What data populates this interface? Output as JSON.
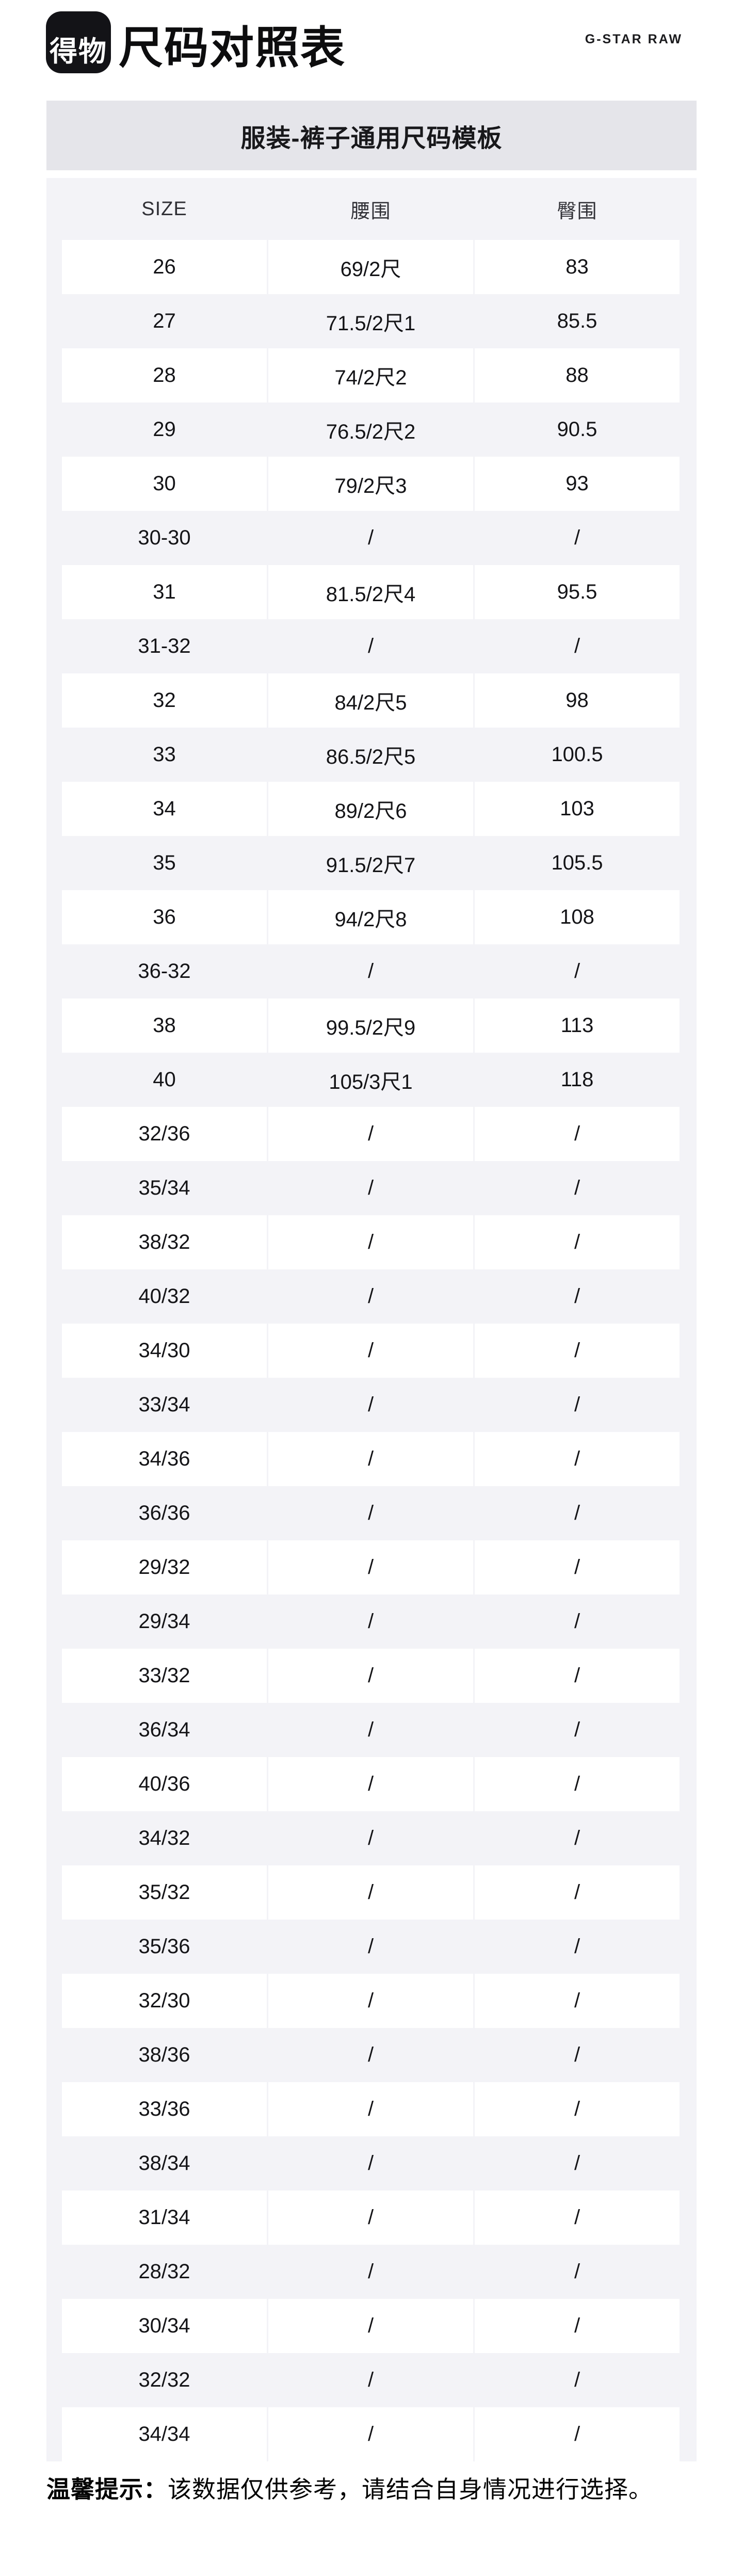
{
  "header": {
    "logo_text": "得物",
    "title": "尺码对照表",
    "brand": "G-STAR RAW"
  },
  "banner": {
    "title": "服装-裤子通用尺码模板"
  },
  "table": {
    "columns": [
      "SIZE",
      "腰围",
      "臀围"
    ],
    "rows": [
      [
        "26",
        "69/2尺",
        "83"
      ],
      [
        "27",
        "71.5/2尺1",
        "85.5"
      ],
      [
        "28",
        "74/2尺2",
        "88"
      ],
      [
        "29",
        "76.5/2尺2",
        "90.5"
      ],
      [
        "30",
        "79/2尺3",
        "93"
      ],
      [
        "30-30",
        "/",
        "/"
      ],
      [
        "31",
        "81.5/2尺4",
        "95.5"
      ],
      [
        "31-32",
        "/",
        "/"
      ],
      [
        "32",
        "84/2尺5",
        "98"
      ],
      [
        "33",
        "86.5/2尺5",
        "100.5"
      ],
      [
        "34",
        "89/2尺6",
        "103"
      ],
      [
        "35",
        "91.5/2尺7",
        "105.5"
      ],
      [
        "36",
        "94/2尺8",
        "108"
      ],
      [
        "36-32",
        "/",
        "/"
      ],
      [
        "38",
        "99.5/2尺9",
        "113"
      ],
      [
        "40",
        "105/3尺1",
        "118"
      ],
      [
        "32/36",
        "/",
        "/"
      ],
      [
        "35/34",
        "/",
        "/"
      ],
      [
        "38/32",
        "/",
        "/"
      ],
      [
        "40/32",
        "/",
        "/"
      ],
      [
        "34/30",
        "/",
        "/"
      ],
      [
        "33/34",
        "/",
        "/"
      ],
      [
        "34/36",
        "/",
        "/"
      ],
      [
        "36/36",
        "/",
        "/"
      ],
      [
        "29/32",
        "/",
        "/"
      ],
      [
        "29/34",
        "/",
        "/"
      ],
      [
        "33/32",
        "/",
        "/"
      ],
      [
        "36/34",
        "/",
        "/"
      ],
      [
        "40/36",
        "/",
        "/"
      ],
      [
        "34/32",
        "/",
        "/"
      ],
      [
        "35/32",
        "/",
        "/"
      ],
      [
        "35/36",
        "/",
        "/"
      ],
      [
        "32/30",
        "/",
        "/"
      ],
      [
        "38/36",
        "/",
        "/"
      ],
      [
        "33/36",
        "/",
        "/"
      ],
      [
        "38/34",
        "/",
        "/"
      ],
      [
        "31/34",
        "/",
        "/"
      ],
      [
        "28/32",
        "/",
        "/"
      ],
      [
        "30/34",
        "/",
        "/"
      ],
      [
        "32/32",
        "/",
        "/"
      ],
      [
        "34/34",
        "/",
        "/"
      ]
    ]
  },
  "footer": {
    "notice_label": "温馨提示：",
    "notice_text": "该数据仅供参考，请结合自身情况进行选择。"
  },
  "colors": {
    "logo_bg": "#131317",
    "banner_bg": "#e5e5ea",
    "panel_bg": "#f3f3f7",
    "cell_bg": "#ffffff",
    "text": "#141417"
  }
}
